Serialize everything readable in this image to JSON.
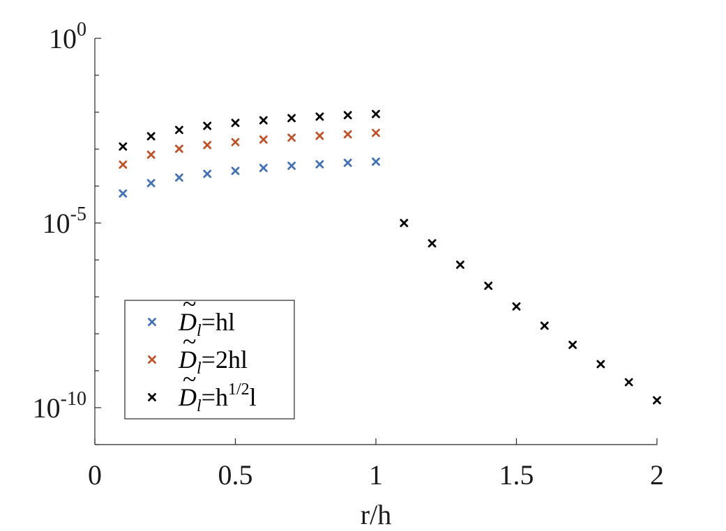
{
  "chart_data": {
    "type": "scatter",
    "title": "",
    "xlabel": "r/h",
    "ylabel": "",
    "xlim": [
      0,
      2
    ],
    "ylim_log10": [
      -11,
      0
    ],
    "y_scale": "log",
    "grid": false,
    "legend_position": "bottom-left",
    "x_ticks": [
      0,
      0.5,
      1,
      1.5,
      2
    ],
    "x_tick_labels": [
      "0",
      "0.5",
      "1",
      "1.5",
      "2"
    ],
    "y_ticks_log10": [
      0,
      -5,
      -10
    ],
    "y_tick_labels": [
      {
        "base": "10",
        "exp": "0"
      },
      {
        "base": "10",
        "exp": "-5"
      },
      {
        "base": "10",
        "exp": "-10"
      }
    ],
    "series": [
      {
        "name": "hl",
        "legend_prefix": "D",
        "legend_sub": "l",
        "legend_eq": "=",
        "legend_suffix": "hl",
        "legend_sup": "",
        "legend_tail": "",
        "color": "#4472b4",
        "x": [
          0.1,
          0.2,
          0.3,
          0.4,
          0.5,
          0.6,
          0.7,
          0.8,
          0.9,
          1.0
        ],
        "y_log10": [
          -4.2,
          -3.92,
          -3.77,
          -3.67,
          -3.59,
          -3.51,
          -3.45,
          -3.41,
          -3.37,
          -3.34
        ]
      },
      {
        "name": "2hl",
        "legend_prefix": "D",
        "legend_sub": "l",
        "legend_eq": "=",
        "legend_suffix": "2hl",
        "legend_sup": "",
        "legend_tail": "",
        "color": "#c0522a",
        "x": [
          0.1,
          0.2,
          0.3,
          0.4,
          0.5,
          0.6,
          0.7,
          0.8,
          0.9,
          1.0
        ],
        "y_log10": [
          -3.42,
          -3.15,
          -2.99,
          -2.89,
          -2.81,
          -2.74,
          -2.69,
          -2.64,
          -2.6,
          -2.56
        ]
      },
      {
        "name": "h^{1/2}l",
        "legend_prefix": "D",
        "legend_sub": "l",
        "legend_eq": "=",
        "legend_suffix": "h",
        "legend_sup": "1/2",
        "legend_tail": "l",
        "color": "#000000",
        "x": [
          0.1,
          0.2,
          0.3,
          0.4,
          0.5,
          0.6,
          0.7,
          0.8,
          0.9,
          1.0,
          1.1,
          1.2,
          1.3,
          1.4,
          1.5,
          1.6,
          1.7,
          1.8,
          1.9,
          2.0
        ],
        "y_log10": [
          -2.93,
          -2.65,
          -2.48,
          -2.37,
          -2.29,
          -2.22,
          -2.16,
          -2.12,
          -2.08,
          -2.05,
          -5.0,
          -5.55,
          -6.13,
          -6.7,
          -7.26,
          -7.78,
          -8.3,
          -8.82,
          -9.31,
          -9.8
        ]
      }
    ]
  }
}
